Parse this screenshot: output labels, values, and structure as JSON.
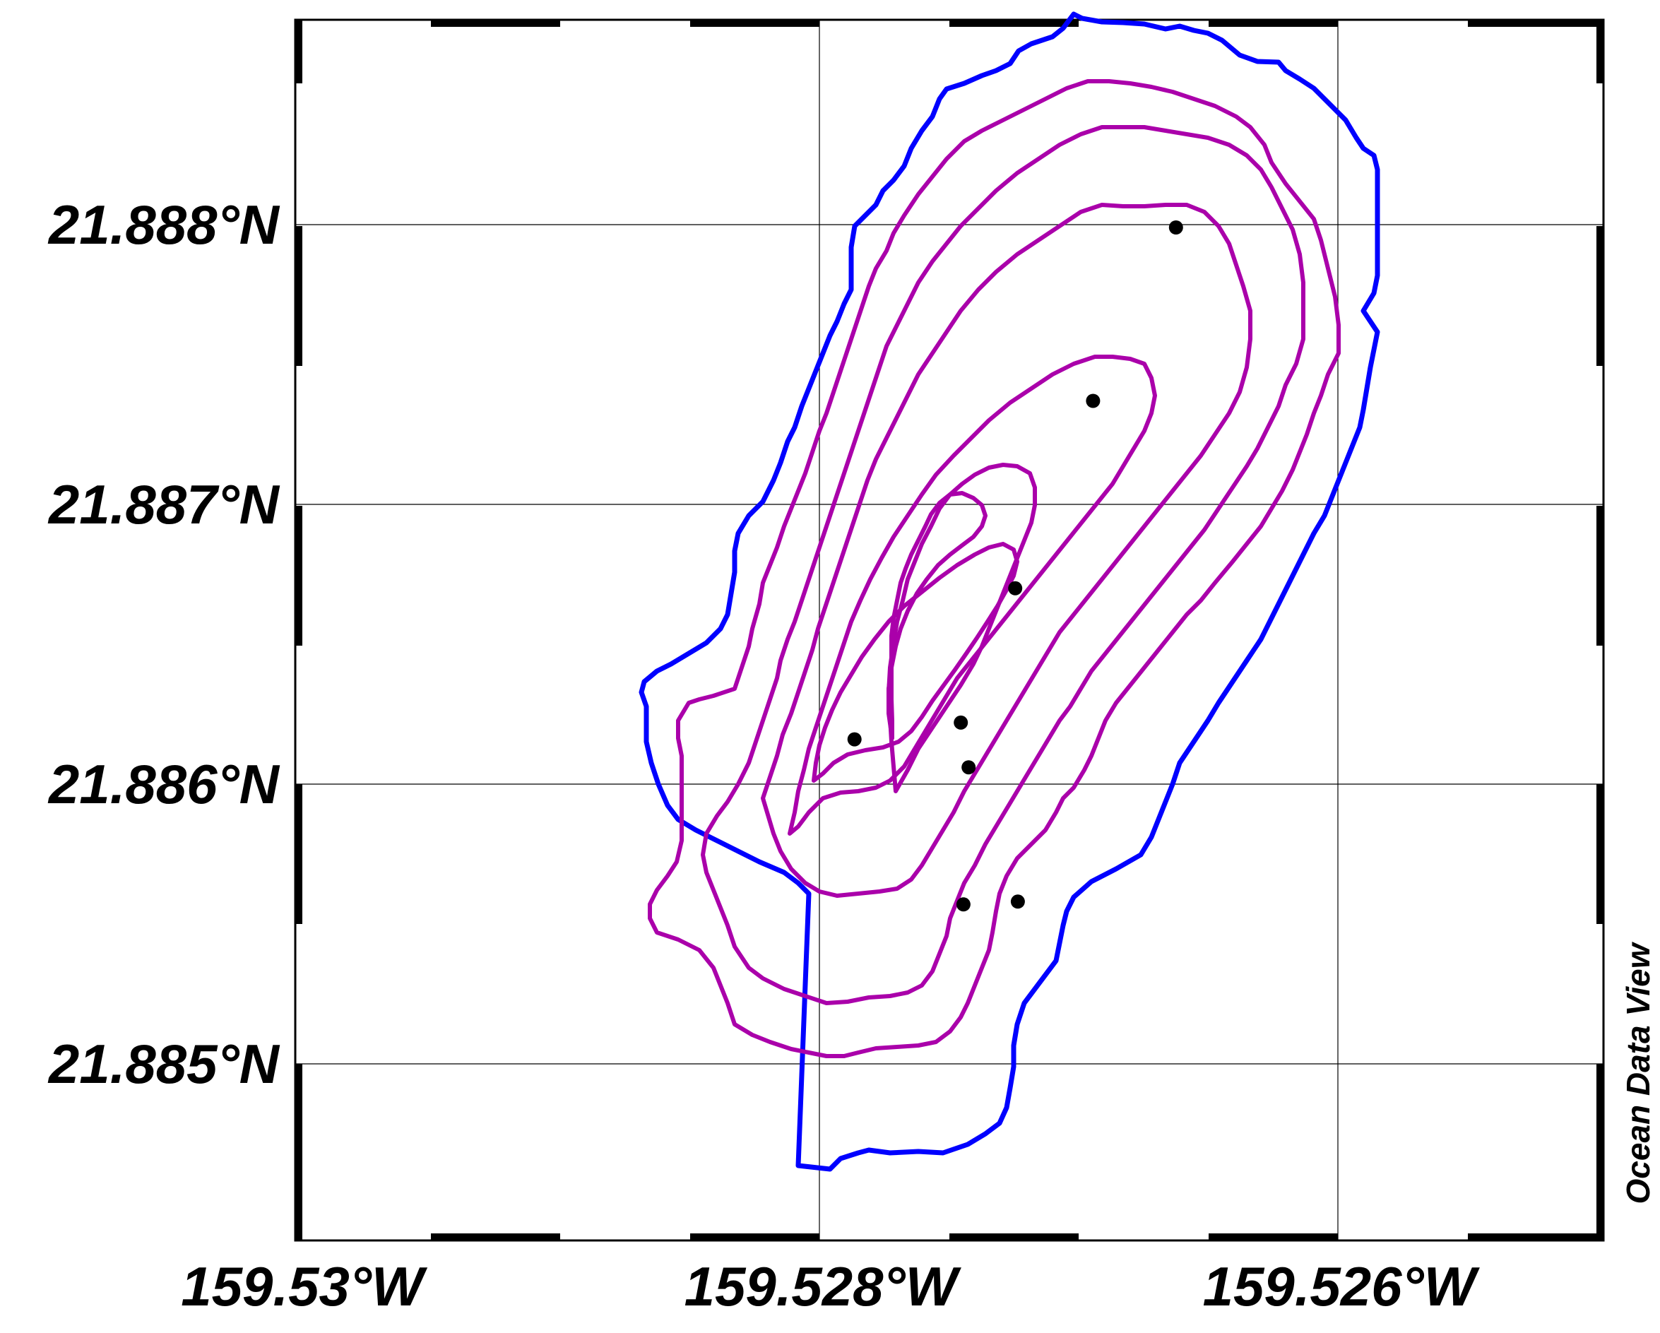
{
  "map": {
    "credit": "Ocean Data View",
    "x_axis": {
      "ticks": [
        {
          "value": -159.53,
          "label": "159.53°W"
        },
        {
          "value": -159.528,
          "label": "159.528°W"
        },
        {
          "value": -159.526,
          "label": "159.526°W"
        }
      ],
      "range": [
        -159.531,
        -159.526
      ]
    },
    "y_axis": {
      "ticks": [
        {
          "value": 21.888,
          "label": "21.888°N"
        },
        {
          "value": 21.887,
          "label": "21.887°N"
        },
        {
          "value": 21.886,
          "label": "21.886°N"
        },
        {
          "value": 21.885,
          "label": "21.885°N"
        }
      ],
      "range": [
        21.8844,
        21.8887
      ]
    },
    "grid": true,
    "colors": {
      "outer_contour": "#0000ff",
      "inner_contours": "#aa00aa",
      "stations": "#000000",
      "grid": "#000000"
    },
    "stations": [
      {
        "lon": -159.52663,
        "lat": 21.88799
      },
      {
        "lon": -159.52695,
        "lat": 21.88737
      },
      {
        "lon": -159.52725,
        "lat": 21.8867
      },
      {
        "lon": -159.52746,
        "lat": 21.88622
      },
      {
        "lon": -159.52743,
        "lat": 21.88606
      },
      {
        "lon": -159.52787,
        "lat": 21.88616
      },
      {
        "lon": -159.52745,
        "lat": 21.88557
      },
      {
        "lon": -159.52724,
        "lat": 21.88558
      }
    ]
  }
}
